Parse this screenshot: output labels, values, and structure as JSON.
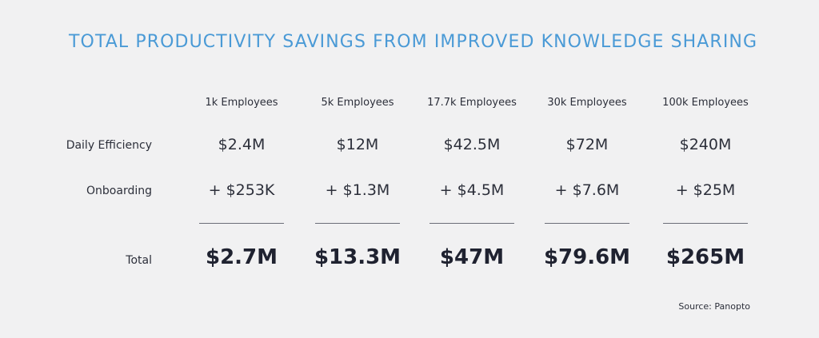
{
  "title": "TOTAL PRODUCTIVITY SAVINGS FROM IMPROVED KNOWLEDGE SHARING",
  "columns": [
    "1k Employees",
    "5k Employees",
    "17.7k Employees",
    "30k Employees",
    "100k Employees"
  ],
  "rows": {
    "daily_efficiency": {
      "label": "Daily Efficiency",
      "values": [
        "$2.4M",
        "$12M",
        "$42.5M",
        "$72M",
        "$240M"
      ]
    },
    "onboarding": {
      "label": "Onboarding",
      "values": [
        "+ $253K",
        "+ $1.3M",
        "+ $4.5M",
        "+ $7.6M",
        "+ $25M"
      ]
    },
    "total": {
      "label": "Total",
      "values": [
        "$2.7M",
        "$13.3M",
        "$47M",
        "$79.6M",
        "$265M"
      ]
    }
  },
  "source": "Source: Panopto",
  "colors": {
    "title": "#4a9ad6",
    "background": "#f1f1f2",
    "text": "#2c2f3a"
  }
}
